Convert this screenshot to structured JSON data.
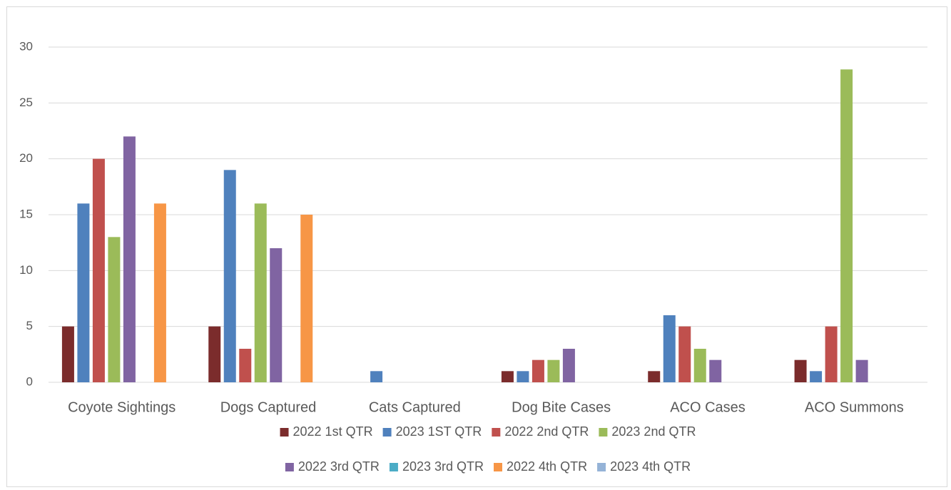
{
  "chart_data": {
    "type": "bar",
    "categories": [
      "Coyote Sightings",
      "Dogs Captured",
      "Cats Captured",
      "Dog Bite Cases",
      "ACO Cases",
      "ACO Summons"
    ],
    "series": [
      {
        "name": "2022 1st QTR",
        "color": "#7b2c2c",
        "values": [
          5,
          5,
          0,
          1,
          1,
          2
        ]
      },
      {
        "name": "2023 1ST QTR",
        "color": "#4f81bd",
        "values": [
          16,
          19,
          1,
          1,
          6,
          1
        ]
      },
      {
        "name": "2022 2nd QTR",
        "color": "#c0504d",
        "values": [
          20,
          3,
          0,
          2,
          5,
          5
        ]
      },
      {
        "name": "2023 2nd QTR",
        "color": "#9bbb59",
        "values": [
          13,
          16,
          0,
          2,
          3,
          28
        ]
      },
      {
        "name": "2022 3rd QTR",
        "color": "#8064a2",
        "values": [
          22,
          12,
          0,
          3,
          2,
          2
        ]
      },
      {
        "name": "2023 3rd QTR",
        "color": "#4bacc6",
        "values": [
          0,
          0,
          0,
          0,
          0,
          0
        ]
      },
      {
        "name": "2022 4th QTR",
        "color": "#f79646",
        "values": [
          16,
          15,
          0,
          0,
          0,
          0
        ]
      },
      {
        "name": "2023 4th QTR",
        "color": "#95b3d7",
        "values": [
          0,
          0,
          0,
          0,
          0,
          0
        ]
      }
    ],
    "ylim": [
      0,
      30
    ],
    "yticks": [
      0,
      5,
      10,
      15,
      20,
      25,
      30
    ],
    "grid": true,
    "legend": "bottom"
  }
}
